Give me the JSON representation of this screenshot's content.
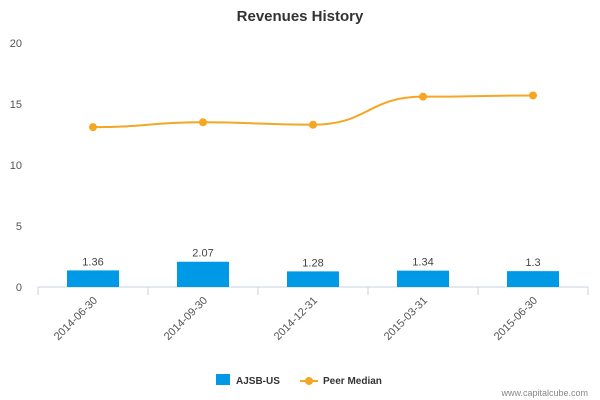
{
  "chart_data": {
    "type": "bar",
    "title": "Revenues History",
    "categories": [
      "2014-06-30",
      "2014-09-30",
      "2014-12-31",
      "2015-03-31",
      "2015-06-30"
    ],
    "series": [
      {
        "name": "AJSB-US",
        "type": "bar",
        "values": [
          1.36,
          2.07,
          1.28,
          1.34,
          1.3
        ],
        "data_labels": [
          "1.36",
          "2.07",
          "1.28",
          "1.34",
          "1.3"
        ],
        "color": "#0099e6"
      },
      {
        "name": "Peer Median",
        "type": "line",
        "values": [
          13.1,
          13.5,
          13.3,
          15.6,
          15.7
        ],
        "color": "#f5a623"
      }
    ],
    "ylim": [
      0,
      20
    ],
    "yticks": [
      "0",
      "5",
      "10",
      "15",
      "20"
    ],
    "grid": false,
    "legend_position": "bottom-center",
    "watermark": "www.capitalcube.com"
  }
}
